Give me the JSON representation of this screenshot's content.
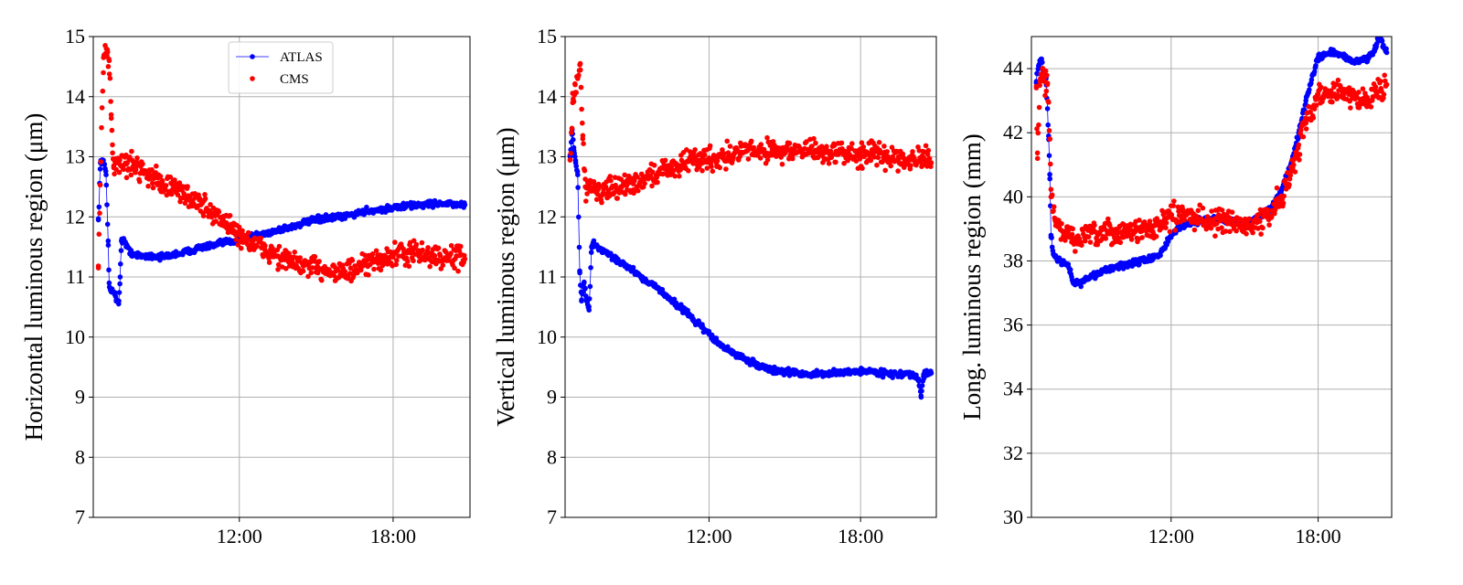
{
  "colors": {
    "atlas": "#0000ff",
    "cms": "#ff0000",
    "grid": "#b0b0b0"
  },
  "chart_data": [
    {
      "type": "scatter",
      "ylabel": "Horizontal luminous region (μm)",
      "ylim": [
        7,
        15
      ],
      "yticks": [
        7,
        8,
        9,
        10,
        11,
        12,
        13,
        14,
        15
      ],
      "xlim_hours": [
        6.3,
        21.0
      ],
      "xticks": [
        {
          "value": 12,
          "label": "12:00"
        },
        {
          "value": 18,
          "label": "18:00"
        }
      ],
      "grid": true,
      "legend": {
        "placement": "upper-center",
        "entries": [
          "ATLAS",
          "CMS"
        ]
      },
      "series": [
        {
          "name": "ATLAS",
          "style": "line-markers",
          "color": "#0000ff",
          "points": [
            [
              6.5,
              11.95
            ],
            [
              6.58,
              12.9
            ],
            [
              6.65,
              12.95
            ],
            [
              6.72,
              12.88
            ],
            [
              6.8,
              12.7
            ],
            [
              6.88,
              11.6
            ],
            [
              6.92,
              10.9
            ],
            [
              6.97,
              10.78
            ],
            [
              7.03,
              10.8
            ],
            [
              7.1,
              10.75
            ],
            [
              7.2,
              10.62
            ],
            [
              7.3,
              10.6
            ],
            [
              7.35,
              11.0
            ],
            [
              7.4,
              11.6
            ],
            [
              7.5,
              11.62
            ],
            [
              7.6,
              11.5
            ],
            [
              7.8,
              11.4
            ],
            [
              8.0,
              11.35
            ],
            [
              8.5,
              11.35
            ],
            [
              9.0,
              11.33
            ],
            [
              9.5,
              11.38
            ],
            [
              10.0,
              11.42
            ],
            [
              10.5,
              11.5
            ],
            [
              11.0,
              11.52
            ],
            [
              11.5,
              11.58
            ],
            [
              12.0,
              11.62
            ],
            [
              12.5,
              11.68
            ],
            [
              13.0,
              11.72
            ],
            [
              13.5,
              11.78
            ],
            [
              14.0,
              11.83
            ],
            [
              14.5,
              11.9
            ],
            [
              15.0,
              11.95
            ],
            [
              15.5,
              11.98
            ],
            [
              16.0,
              12.0
            ],
            [
              16.5,
              12.05
            ],
            [
              17.0,
              12.1
            ],
            [
              17.5,
              12.12
            ],
            [
              18.0,
              12.15
            ],
            [
              18.5,
              12.18
            ],
            [
              19.0,
              12.2
            ],
            [
              19.5,
              12.22
            ],
            [
              20.0,
              12.22
            ],
            [
              20.5,
              12.2
            ],
            [
              20.8,
              12.2
            ]
          ]
        },
        {
          "name": "CMS",
          "style": "markers",
          "color": "#ff0000",
          "points": [
            [
              6.5,
              11.15
            ],
            [
              6.7,
              14.65
            ],
            [
              6.78,
              14.72
            ],
            [
              6.85,
              14.78
            ],
            [
              6.92,
              14.6
            ],
            [
              7.0,
              13.7
            ],
            [
              7.05,
              13.2
            ],
            [
              7.1,
              12.85
            ],
            [
              7.3,
              12.9
            ],
            [
              7.6,
              12.88
            ],
            [
              8.0,
              12.85
            ],
            [
              8.5,
              12.7
            ],
            [
              9.0,
              12.55
            ],
            [
              9.5,
              12.45
            ],
            [
              10.0,
              12.35
            ],
            [
              10.5,
              12.2
            ],
            [
              11.0,
              12.05
            ],
            [
              11.5,
              11.9
            ],
            [
              12.0,
              11.7
            ],
            [
              12.5,
              11.55
            ],
            [
              13.0,
              11.45
            ],
            [
              13.5,
              11.35
            ],
            [
              14.0,
              11.25
            ],
            [
              14.5,
              11.18
            ],
            [
              15.0,
              11.15
            ],
            [
              15.5,
              11.12
            ],
            [
              16.0,
              11.08
            ],
            [
              16.5,
              11.1
            ],
            [
              17.0,
              11.2
            ],
            [
              17.5,
              11.3
            ],
            [
              18.0,
              11.35
            ],
            [
              18.5,
              11.4
            ],
            [
              19.0,
              11.38
            ],
            [
              19.5,
              11.35
            ],
            [
              20.0,
              11.3
            ],
            [
              20.5,
              11.35
            ],
            [
              20.8,
              11.3
            ]
          ]
        }
      ]
    },
    {
      "type": "scatter",
      "ylabel": "Vertical luminous region (μm)",
      "ylim": [
        7,
        15
      ],
      "yticks": [
        7,
        8,
        9,
        10,
        11,
        12,
        13,
        14,
        15
      ],
      "xlim_hours": [
        6.3,
        21.0
      ],
      "xticks": [
        {
          "value": 12,
          "label": "12:00"
        },
        {
          "value": 18,
          "label": "18:00"
        }
      ],
      "grid": true,
      "series": [
        {
          "name": "ATLAS",
          "style": "line-markers",
          "color": "#0000ff",
          "points": [
            [
              6.5,
              13.0
            ],
            [
              6.58,
              13.45
            ],
            [
              6.65,
              13.1
            ],
            [
              6.72,
              12.9
            ],
            [
              6.8,
              12.7
            ],
            [
              6.88,
              11.1
            ],
            [
              6.95,
              10.6
            ],
            [
              7.05,
              10.9
            ],
            [
              7.15,
              10.6
            ],
            [
              7.25,
              10.45
            ],
            [
              7.35,
              11.5
            ],
            [
              7.45,
              11.55
            ],
            [
              7.6,
              11.5
            ],
            [
              7.8,
              11.42
            ],
            [
              8.0,
              11.38
            ],
            [
              8.5,
              11.25
            ],
            [
              9.0,
              11.1
            ],
            [
              9.5,
              10.95
            ],
            [
              10.0,
              10.8
            ],
            [
              10.5,
              10.62
            ],
            [
              11.0,
              10.45
            ],
            [
              11.5,
              10.25
            ],
            [
              12.0,
              10.05
            ],
            [
              12.5,
              9.85
            ],
            [
              13.0,
              9.72
            ],
            [
              13.5,
              9.62
            ],
            [
              14.0,
              9.52
            ],
            [
              14.5,
              9.45
            ],
            [
              15.0,
              9.42
            ],
            [
              15.5,
              9.4
            ],
            [
              16.0,
              9.38
            ],
            [
              16.5,
              9.38
            ],
            [
              17.0,
              9.4
            ],
            [
              17.5,
              9.42
            ],
            [
              18.0,
              9.44
            ],
            [
              18.5,
              9.42
            ],
            [
              19.0,
              9.4
            ],
            [
              19.5,
              9.38
            ],
            [
              20.0,
              9.38
            ],
            [
              20.3,
              9.3
            ],
            [
              20.4,
              9.0
            ],
            [
              20.5,
              9.38
            ],
            [
              20.8,
              9.4
            ]
          ]
        },
        {
          "name": "CMS",
          "style": "markers",
          "color": "#ff0000",
          "points": [
            [
              6.5,
              12.95
            ],
            [
              6.6,
              13.9
            ],
            [
              6.7,
              14.2
            ],
            [
              6.8,
              14.3
            ],
            [
              6.9,
              14.55
            ],
            [
              7.0,
              13.3
            ],
            [
              7.1,
              12.5
            ],
            [
              7.3,
              12.5
            ],
            [
              7.6,
              12.45
            ],
            [
              8.0,
              12.4
            ],
            [
              8.5,
              12.5
            ],
            [
              9.0,
              12.55
            ],
            [
              9.5,
              12.65
            ],
            [
              10.0,
              12.75
            ],
            [
              10.5,
              12.82
            ],
            [
              11.0,
              12.9
            ],
            [
              11.5,
              12.95
            ],
            [
              12.0,
              12.98
            ],
            [
              12.5,
              13.0
            ],
            [
              13.0,
              13.05
            ],
            [
              13.5,
              13.1
            ],
            [
              14.0,
              13.1
            ],
            [
              14.5,
              13.12
            ],
            [
              15.0,
              13.1
            ],
            [
              15.5,
              13.08
            ],
            [
              16.0,
              13.1
            ],
            [
              16.5,
              13.08
            ],
            [
              17.0,
              13.05
            ],
            [
              17.5,
              13.05
            ],
            [
              18.0,
              13.05
            ],
            [
              18.5,
              13.05
            ],
            [
              19.0,
              13.0
            ],
            [
              19.5,
              13.0
            ],
            [
              20.0,
              12.98
            ],
            [
              20.5,
              12.95
            ],
            [
              20.8,
              12.9
            ]
          ]
        }
      ]
    },
    {
      "type": "scatter",
      "ylabel": "Long. luminous region (mm)",
      "ylim": [
        30,
        45
      ],
      "yticks": [
        30,
        32,
        34,
        36,
        38,
        40,
        42,
        44
      ],
      "xlim_hours": [
        6.3,
        21.0
      ],
      "xticks": [
        {
          "value": 12,
          "label": "12:00"
        },
        {
          "value": 18,
          "label": "18:00"
        }
      ],
      "grid": true,
      "series": [
        {
          "name": "ATLAS",
          "style": "line-markers",
          "color": "#0000ff",
          "points": [
            [
              6.5,
              43.6
            ],
            [
              6.6,
              44.1
            ],
            [
              6.7,
              44.3
            ],
            [
              6.8,
              43.9
            ],
            [
              6.9,
              43.7
            ],
            [
              7.0,
              41.9
            ],
            [
              7.05,
              40.7
            ],
            [
              7.1,
              38.8
            ],
            [
              7.2,
              38.2
            ],
            [
              7.4,
              38.0
            ],
            [
              7.6,
              37.95
            ],
            [
              7.8,
              37.9
            ],
            [
              8.0,
              37.35
            ],
            [
              8.3,
              37.3
            ],
            [
              8.6,
              37.45
            ],
            [
              9.0,
              37.6
            ],
            [
              9.5,
              37.75
            ],
            [
              10.0,
              37.85
            ],
            [
              10.5,
              37.95
            ],
            [
              11.0,
              38.05
            ],
            [
              11.5,
              38.15
            ],
            [
              12.0,
              38.8
            ],
            [
              12.5,
              39.1
            ],
            [
              13.0,
              39.25
            ],
            [
              13.5,
              39.3
            ],
            [
              14.0,
              39.3
            ],
            [
              14.5,
              39.25
            ],
            [
              15.0,
              39.2
            ],
            [
              15.5,
              39.3
            ],
            [
              16.0,
              39.6
            ],
            [
              16.5,
              40.2
            ],
            [
              17.0,
              41.3
            ],
            [
              17.5,
              43.0
            ],
            [
              18.0,
              44.35
            ],
            [
              18.5,
              44.5
            ],
            [
              19.0,
              44.4
            ],
            [
              19.5,
              44.2
            ],
            [
              20.0,
              44.3
            ],
            [
              20.3,
              44.6
            ],
            [
              20.5,
              45.0
            ],
            [
              20.8,
              44.5
            ]
          ]
        },
        {
          "name": "CMS",
          "style": "markers",
          "color": "#ff0000",
          "points": [
            [
              6.5,
              43.4
            ],
            [
              6.55,
              41.2
            ],
            [
              6.65,
              43.6
            ],
            [
              6.75,
              44.0
            ],
            [
              6.85,
              43.6
            ],
            [
              6.95,
              43.5
            ],
            [
              7.05,
              41.8
            ],
            [
              7.1,
              40.0
            ],
            [
              7.3,
              39.2
            ],
            [
              7.6,
              38.9
            ],
            [
              8.0,
              38.7
            ],
            [
              8.5,
              38.75
            ],
            [
              9.0,
              38.8
            ],
            [
              9.5,
              38.85
            ],
            [
              10.0,
              38.9
            ],
            [
              10.5,
              38.95
            ],
            [
              11.0,
              39.0
            ],
            [
              11.5,
              39.1
            ],
            [
              12.0,
              39.4
            ],
            [
              12.5,
              39.45
            ],
            [
              13.0,
              39.35
            ],
            [
              13.5,
              39.3
            ],
            [
              14.0,
              39.25
            ],
            [
              14.5,
              39.2
            ],
            [
              15.0,
              39.1
            ],
            [
              15.5,
              39.2
            ],
            [
              16.0,
              39.4
            ],
            [
              16.5,
              40.0
            ],
            [
              17.0,
              41.0
            ],
            [
              17.5,
              42.3
            ],
            [
              18.0,
              43.2
            ],
            [
              18.5,
              43.3
            ],
            [
              19.0,
              43.2
            ],
            [
              19.5,
              43.1
            ],
            [
              20.0,
              43.1
            ],
            [
              20.5,
              43.3
            ],
            [
              20.8,
              43.5
            ]
          ]
        }
      ]
    }
  ]
}
